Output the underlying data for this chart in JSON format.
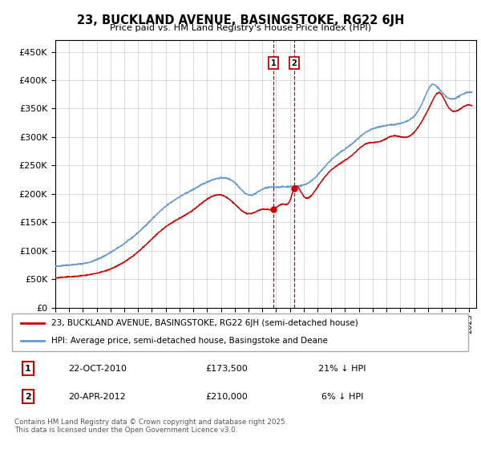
{
  "title": "23, BUCKLAND AVENUE, BASINGSTOKE, RG22 6JH",
  "subtitle": "Price paid vs. HM Land Registry's House Price Index (HPI)",
  "ylim": [
    0,
    470000
  ],
  "yticks": [
    0,
    50000,
    100000,
    150000,
    200000,
    250000,
    300000,
    350000,
    400000,
    450000
  ],
  "xlim_start": 1995.0,
  "xlim_end": 2025.5,
  "legend_line1": "23, BUCKLAND AVENUE, BASINGSTOKE, RG22 6JH (semi-detached house)",
  "legend_line2": "HPI: Average price, semi-detached house, Basingstoke and Deane",
  "transaction1_num": "1",
  "transaction1_date": "22-OCT-2010",
  "transaction1_price": "£173,500",
  "transaction1_hpi": "21% ↓ HPI",
  "transaction2_num": "2",
  "transaction2_date": "20-APR-2012",
  "transaction2_price": "£210,000",
  "transaction2_hpi": "6% ↓ HPI",
  "footnote": "Contains HM Land Registry data © Crown copyright and database right 2025.\nThis data is licensed under the Open Government Licence v3.0.",
  "transaction1_x": 2010.81,
  "transaction2_x": 2012.31,
  "transaction1_y": 173500,
  "transaction2_y": 210000,
  "red_color": "#cc0000",
  "blue_color": "#6699cc",
  "bg_color": "#ffffff",
  "grid_color": "#cccccc",
  "hpi_anchors": [
    [
      1995.0,
      72000
    ],
    [
      1996.0,
      75000
    ],
    [
      1997.5,
      80000
    ],
    [
      1999.0,
      97000
    ],
    [
      2001.0,
      132000
    ],
    [
      2003.0,
      178000
    ],
    [
      2005.0,
      208000
    ],
    [
      2007.0,
      228000
    ],
    [
      2008.0,
      220000
    ],
    [
      2009.0,
      198000
    ],
    [
      2010.0,
      208000
    ],
    [
      2011.0,
      212000
    ],
    [
      2012.0,
      213000
    ],
    [
      2013.5,
      222000
    ],
    [
      2015.0,
      260000
    ],
    [
      2016.5,
      288000
    ],
    [
      2017.5,
      308000
    ],
    [
      2018.5,
      318000
    ],
    [
      2019.5,
      322000
    ],
    [
      2020.5,
      328000
    ],
    [
      2021.5,
      355000
    ],
    [
      2022.3,
      392000
    ],
    [
      2022.8,
      385000
    ],
    [
      2023.5,
      368000
    ],
    [
      2024.5,
      375000
    ],
    [
      2025.2,
      378000
    ]
  ],
  "hp_anchors": [
    [
      1995.0,
      52000
    ],
    [
      1996.0,
      54000
    ],
    [
      1997.5,
      58000
    ],
    [
      1999.0,
      68000
    ],
    [
      2001.0,
      98000
    ],
    [
      2003.0,
      142000
    ],
    [
      2005.0,
      172000
    ],
    [
      2007.0,
      198000
    ],
    [
      2008.0,
      182000
    ],
    [
      2009.0,
      165000
    ],
    [
      2010.0,
      173000
    ],
    [
      2010.81,
      173500
    ],
    [
      2011.5,
      182000
    ],
    [
      2012.0,
      188000
    ],
    [
      2012.31,
      210000
    ],
    [
      2013.0,
      196000
    ],
    [
      2014.0,
      212000
    ],
    [
      2015.0,
      242000
    ],
    [
      2016.5,
      268000
    ],
    [
      2017.5,
      288000
    ],
    [
      2018.5,
      292000
    ],
    [
      2019.5,
      302000
    ],
    [
      2020.5,
      300000
    ],
    [
      2021.5,
      325000
    ],
    [
      2022.3,
      362000
    ],
    [
      2022.8,
      378000
    ],
    [
      2023.5,
      352000
    ],
    [
      2024.5,
      352000
    ],
    [
      2025.2,
      355000
    ]
  ]
}
